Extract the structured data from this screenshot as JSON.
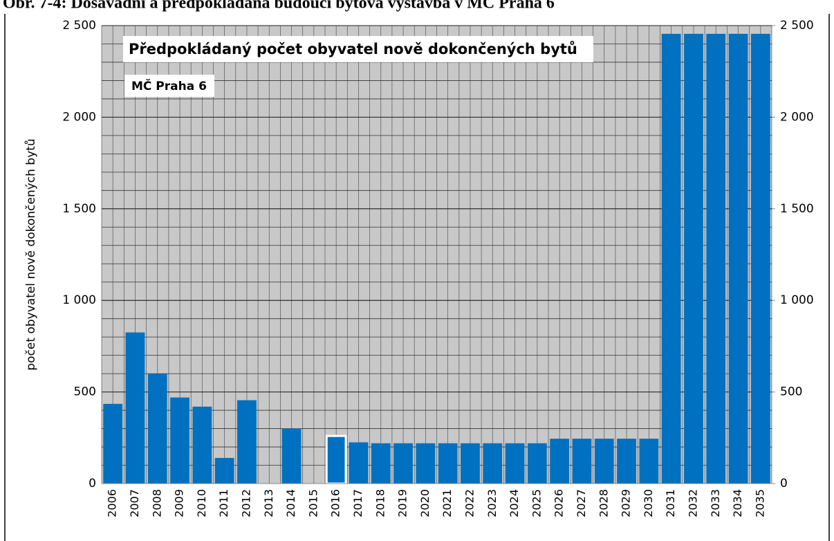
{
  "chart_data": {
    "type": "bar",
    "title": "Obr. 7-4: Dosavadní a předpokládaná budoucí bytová výstavba v MČ Praha 6",
    "annotations": [
      "Předpokládaný počet obyvatel nově dokončených bytů",
      "MČ Praha 6"
    ],
    "y_label": "počet obyvatel nově dokončených bytů",
    "categories": [
      "2006",
      "2007",
      "2008",
      "2009",
      "2010",
      "2011",
      "2012",
      "2013",
      "2014",
      "2015",
      "2016",
      "2017",
      "2018",
      "2019",
      "2020",
      "2021",
      "2022",
      "2023",
      "2024",
      "2025",
      "2026",
      "2027",
      "2028",
      "2029",
      "2030",
      "2031",
      "2032",
      "2033",
      "2034",
      "2035"
    ],
    "values": [
      435,
      825,
      600,
      470,
      420,
      140,
      455,
      null,
      300,
      null,
      260,
      225,
      220,
      220,
      220,
      220,
      220,
      220,
      220,
      220,
      245,
      245,
      245,
      245,
      245,
      2455,
      2455,
      2455,
      2455,
      2455
    ],
    "highlighted": "2016",
    "color": "#0070c0",
    "ylim": [
      0,
      2500
    ],
    "yticks": [
      0,
      500,
      {
        "value": 1000,
        "label": "1 000"
      },
      {
        "value": 1500,
        "label": "1 500"
      },
      {
        "value": 2000,
        "label": "2 000"
      },
      {
        "value": 2500,
        "label": "2 500"
      }
    ],
    "y2lim": [
      0,
      2500
    ],
    "y2ticks": [
      0,
      500,
      {
        "value": 1000,
        "label": "1 000"
      },
      {
        "value": 1500,
        "label": "1 500"
      },
      {
        "value": 2000,
        "label": "2 000"
      },
      {
        "value": 2500,
        "label": "2 500"
      }
    ],
    "grid": true
  }
}
